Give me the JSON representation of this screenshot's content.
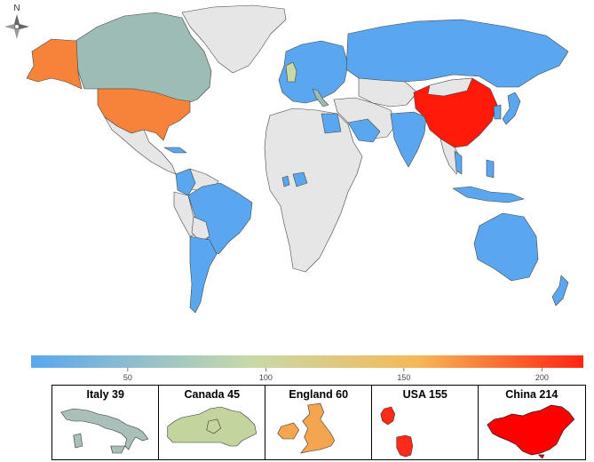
{
  "map": {
    "compass_label": "N",
    "colors": {
      "ocean": "#ffffff",
      "no_data": "#e6e6e6",
      "border": "#444444",
      "low": "#5aa7ef",
      "teal": "#9dbcb6",
      "olive": "#c8d9a6",
      "mid": "#eec57a",
      "orange": "#f7833b",
      "high": "#ff1a0a"
    }
  },
  "colorbar": {
    "min": 15,
    "max": 215,
    "ticks": [
      "50",
      "100",
      "150",
      "200"
    ],
    "tick_values": [
      50,
      100,
      150,
      200
    ],
    "stops": [
      "#5aa7ef",
      "#c9d9a8",
      "#f5b858",
      "#ff2412"
    ]
  },
  "insets": [
    {
      "label": "Italy 39",
      "name": "Italy",
      "value": 39,
      "color": "#a9bfba"
    },
    {
      "label": "Canada 45",
      "name": "Canada",
      "value": 45,
      "color": "#c3d49f"
    },
    {
      "label": "England 60",
      "name": "England",
      "value": 60,
      "color": "#f3a64f"
    },
    {
      "label": "USA 155",
      "name": "USA",
      "value": 155,
      "color": "#ff2a1a"
    },
    {
      "label": "China 214",
      "name": "China",
      "value": 214,
      "color": "#ff0000"
    }
  ]
}
